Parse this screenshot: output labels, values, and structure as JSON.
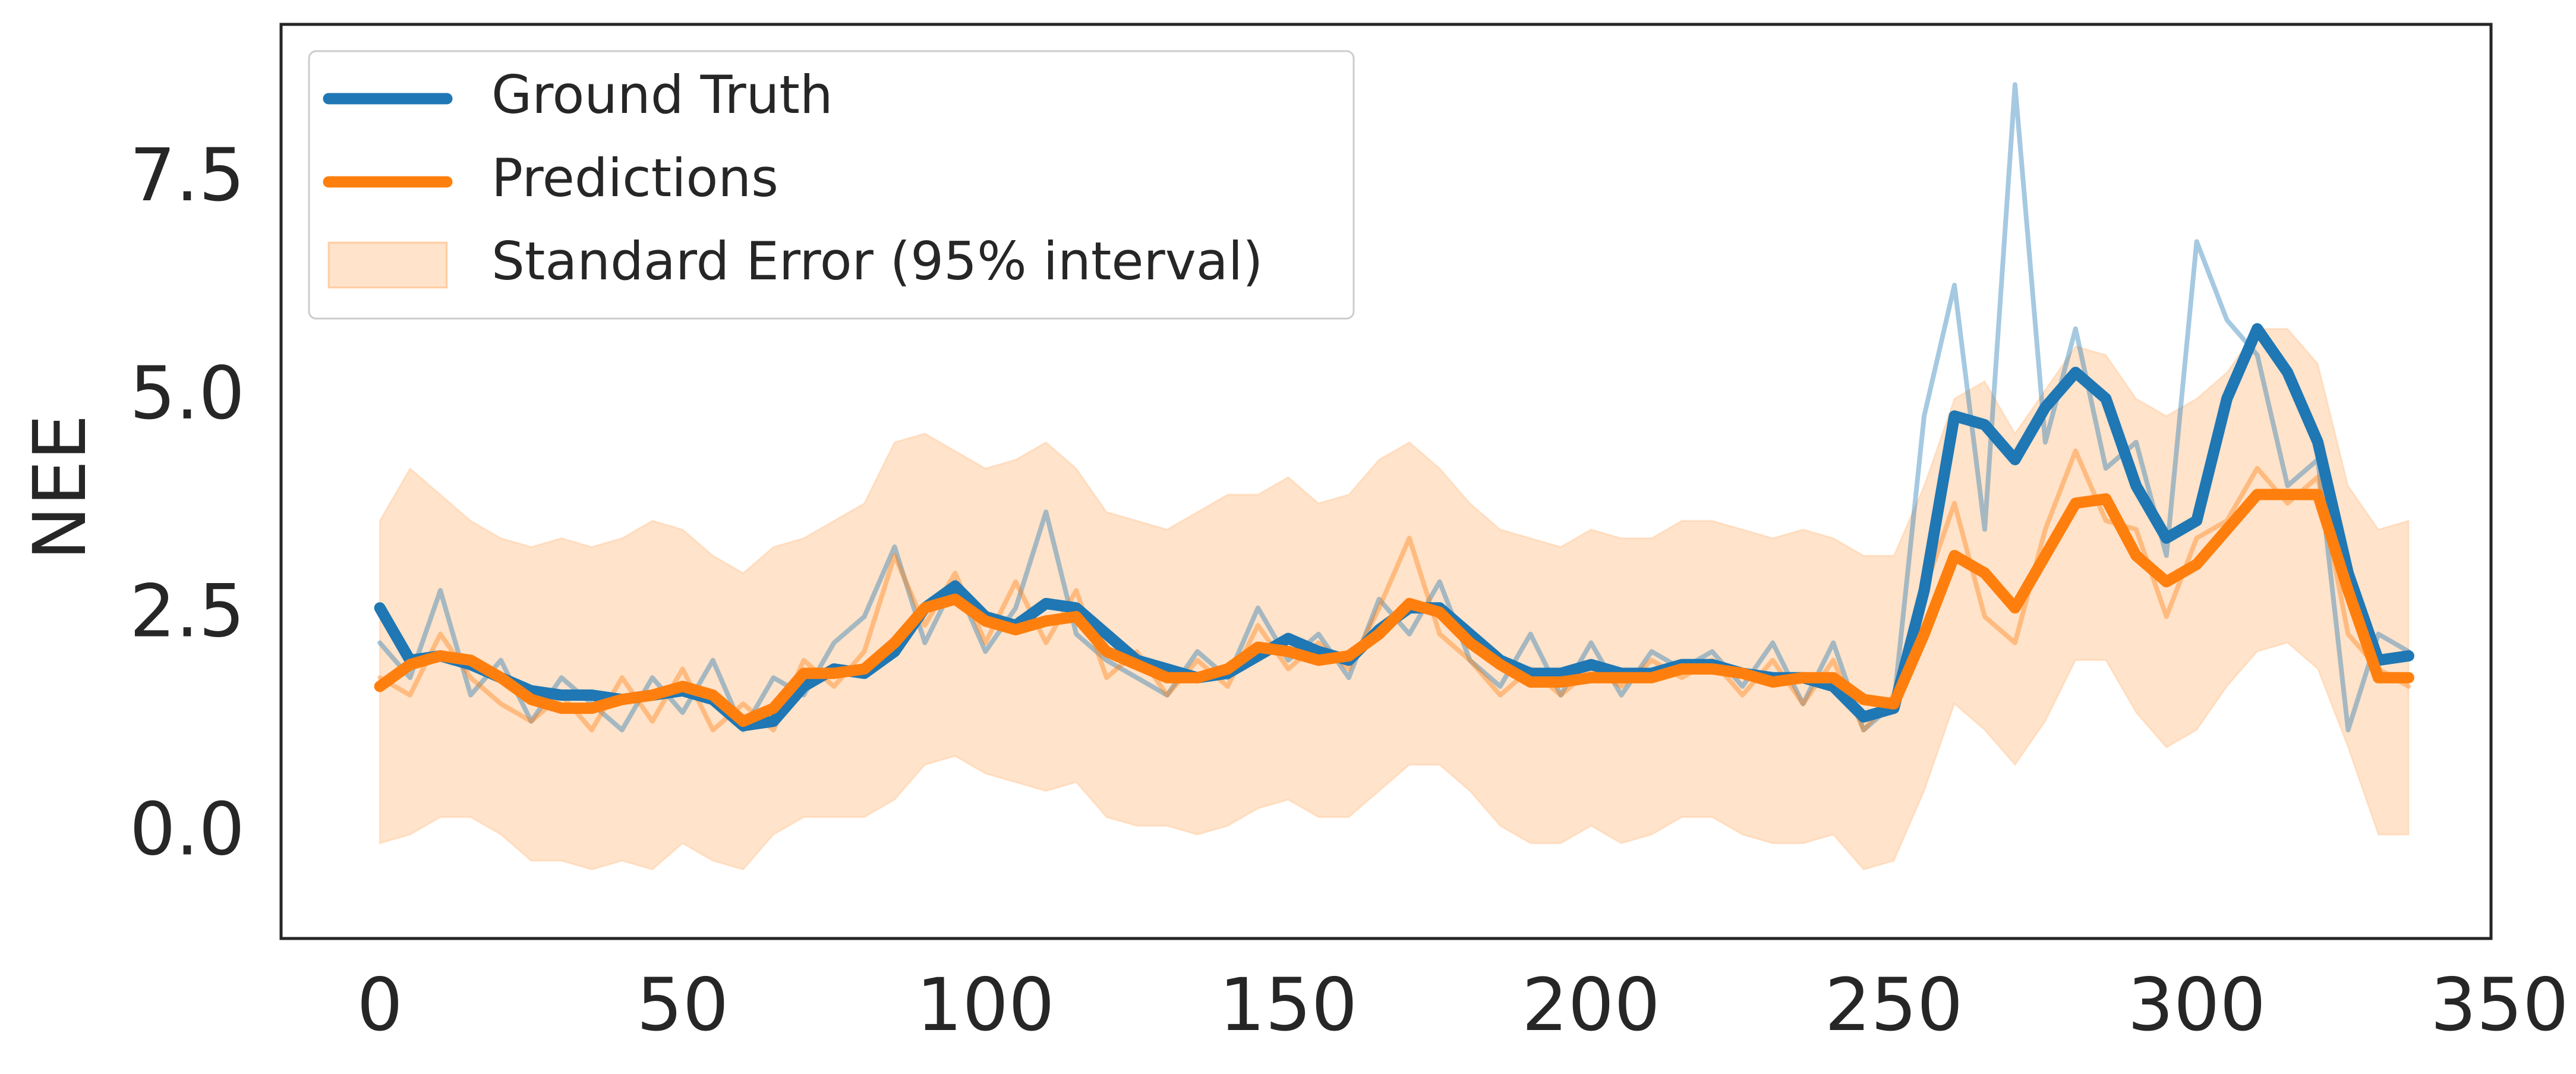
{
  "chart_data": {
    "type": "line",
    "y_label": "NEE",
    "x": [
      0,
      5,
      10,
      15,
      20,
      25,
      30,
      35,
      40,
      45,
      50,
      55,
      60,
      65,
      70,
      75,
      80,
      85,
      90,
      95,
      100,
      105,
      110,
      115,
      120,
      125,
      130,
      135,
      140,
      145,
      150,
      155,
      160,
      165,
      170,
      175,
      180,
      185,
      190,
      195,
      200,
      205,
      210,
      215,
      220,
      225,
      230,
      235,
      240,
      245,
      250,
      255,
      260,
      265,
      270,
      275,
      280,
      285,
      290,
      295,
      300,
      305,
      310,
      315,
      320,
      325,
      330,
      335
    ],
    "xlim": [
      -16.3,
      348.6
    ],
    "ylim": [
      -1.19,
      9.29
    ],
    "xticks": [
      0,
      50,
      100,
      150,
      200,
      250,
      300,
      350
    ],
    "yticks": [
      {
        "value": 0,
        "label": "0.0"
      },
      2.5,
      {
        "value": 5,
        "label": "5.0"
      },
      7.5
    ],
    "grid": false,
    "legend": "upper left",
    "band": {
      "name": "Standard Error (95% interval)",
      "color": "#ff7f0e",
      "opacity": 0.22,
      "upper": [
        3.6,
        4.2,
        3.9,
        3.6,
        3.4,
        3.3,
        3.4,
        3.3,
        3.4,
        3.6,
        3.5,
        3.2,
        3.0,
        3.3,
        3.4,
        3.6,
        3.8,
        4.5,
        4.6,
        4.4,
        4.2,
        4.3,
        4.5,
        4.2,
        3.7,
        3.6,
        3.5,
        3.7,
        3.9,
        3.9,
        4.1,
        3.8,
        3.9,
        4.3,
        4.5,
        4.2,
        3.8,
        3.5,
        3.4,
        3.3,
        3.5,
        3.4,
        3.4,
        3.6,
        3.6,
        3.5,
        3.4,
        3.5,
        3.4,
        3.2,
        3.2,
        4.0,
        5.0,
        5.2,
        4.6,
        5.1,
        5.6,
        5.5,
        5.0,
        4.8,
        5.0,
        5.3,
        5.8,
        5.8,
        5.4,
        4.0,
        3.5,
        3.6
      ],
      "lower": [
        -0.1,
        0.0,
        0.2,
        0.2,
        0.0,
        -0.3,
        -0.3,
        -0.4,
        -0.3,
        -0.4,
        -0.1,
        -0.3,
        -0.4,
        0.0,
        0.2,
        0.2,
        0.2,
        0.4,
        0.8,
        0.9,
        0.7,
        0.6,
        0.5,
        0.6,
        0.2,
        0.1,
        0.1,
        0.0,
        0.1,
        0.3,
        0.4,
        0.2,
        0.2,
        0.5,
        0.8,
        0.8,
        0.5,
        0.1,
        -0.1,
        -0.1,
        0.1,
        -0.1,
        0.0,
        0.2,
        0.2,
        0.0,
        -0.1,
        -0.1,
        0.0,
        -0.4,
        -0.3,
        0.5,
        1.5,
        1.2,
        0.8,
        1.3,
        2.0,
        2.0,
        1.4,
        1.0,
        1.2,
        1.7,
        2.1,
        2.2,
        1.9,
        1.0,
        0.0,
        0.0
      ]
    },
    "series": [
      {
        "color": "#1f77b4",
        "opacity": 0.4,
        "width": 8,
        "values": [
          2.2,
          1.8,
          2.8,
          1.6,
          2.0,
          1.3,
          1.8,
          1.5,
          1.2,
          1.8,
          1.4,
          2.0,
          1.2,
          1.8,
          1.6,
          2.2,
          2.5,
          3.3,
          2.2,
          2.9,
          2.1,
          2.6,
          3.7,
          2.3,
          2.0,
          1.8,
          1.6,
          2.1,
          1.8,
          2.6,
          2.0,
          2.3,
          1.8,
          2.7,
          2.3,
          2.9,
          2.0,
          1.7,
          2.3,
          1.6,
          2.2,
          1.6,
          2.1,
          1.9,
          2.1,
          1.7,
          2.2,
          1.5,
          2.2,
          1.2,
          1.5,
          4.8,
          6.3,
          3.5,
          8.6,
          4.5,
          5.8,
          4.2,
          4.5,
          3.2,
          6.8,
          5.9,
          5.5,
          4.0,
          4.3,
          1.2,
          2.3,
          2.1
        ]
      },
      {
        "color": "#ff7f0e",
        "opacity": 0.4,
        "width": 8,
        "values": [
          1.8,
          1.6,
          2.3,
          1.8,
          1.5,
          1.3,
          1.6,
          1.2,
          1.8,
          1.3,
          1.9,
          1.2,
          1.5,
          1.2,
          2.0,
          1.7,
          2.1,
          3.2,
          2.4,
          3.0,
          2.2,
          2.9,
          2.2,
          2.8,
          1.8,
          2.1,
          1.6,
          2.0,
          1.7,
          2.4,
          1.9,
          2.2,
          1.9,
          2.6,
          3.4,
          2.3,
          2.0,
          1.6,
          1.9,
          1.6,
          1.9,
          1.7,
          2.0,
          1.8,
          2.0,
          1.6,
          2.0,
          1.5,
          2.0,
          1.2,
          1.6,
          2.8,
          3.8,
          2.5,
          2.2,
          3.5,
          4.4,
          3.6,
          3.5,
          2.5,
          3.4,
          3.6,
          4.2,
          3.8,
          4.1,
          2.3,
          1.9,
          1.7
        ]
      },
      {
        "name": "Ground Truth",
        "color": "#1f77b4",
        "opacity": 1,
        "width": 19,
        "values": [
          2.6,
          2.0,
          2.05,
          1.95,
          1.8,
          1.65,
          1.6,
          1.6,
          1.55,
          1.6,
          1.65,
          1.55,
          1.25,
          1.3,
          1.7,
          1.9,
          1.85,
          2.1,
          2.6,
          2.85,
          2.5,
          2.4,
          2.65,
          2.6,
          2.3,
          2.0,
          1.9,
          1.8,
          1.85,
          2.05,
          2.25,
          2.1,
          2.0,
          2.35,
          2.6,
          2.6,
          2.3,
          2.0,
          1.85,
          1.85,
          1.95,
          1.85,
          1.85,
          1.95,
          1.95,
          1.85,
          1.8,
          1.8,
          1.7,
          1.35,
          1.45,
          2.8,
          4.8,
          4.7,
          4.3,
          4.9,
          5.3,
          5.0,
          4.0,
          3.4,
          3.6,
          5.0,
          5.8,
          5.3,
          4.5,
          3.0,
          2.0,
          2.05
        ]
      },
      {
        "name": "Predictions",
        "color": "#ff7f0e",
        "opacity": 1,
        "width": 19,
        "values": [
          1.7,
          1.95,
          2.05,
          2.0,
          1.8,
          1.55,
          1.45,
          1.45,
          1.55,
          1.6,
          1.7,
          1.6,
          1.3,
          1.45,
          1.85,
          1.85,
          1.9,
          2.2,
          2.6,
          2.7,
          2.45,
          2.35,
          2.45,
          2.5,
          2.1,
          1.95,
          1.8,
          1.8,
          1.9,
          2.15,
          2.1,
          2.0,
          2.05,
          2.3,
          2.65,
          2.55,
          2.2,
          1.95,
          1.75,
          1.75,
          1.8,
          1.8,
          1.8,
          1.9,
          1.9,
          1.85,
          1.75,
          1.8,
          1.8,
          1.55,
          1.5,
          2.3,
          3.2,
          3.0,
          2.6,
          3.2,
          3.8,
          3.85,
          3.2,
          2.9,
          3.1,
          3.5,
          3.9,
          3.9,
          3.9,
          2.8,
          1.8,
          1.8
        ]
      }
    ]
  }
}
